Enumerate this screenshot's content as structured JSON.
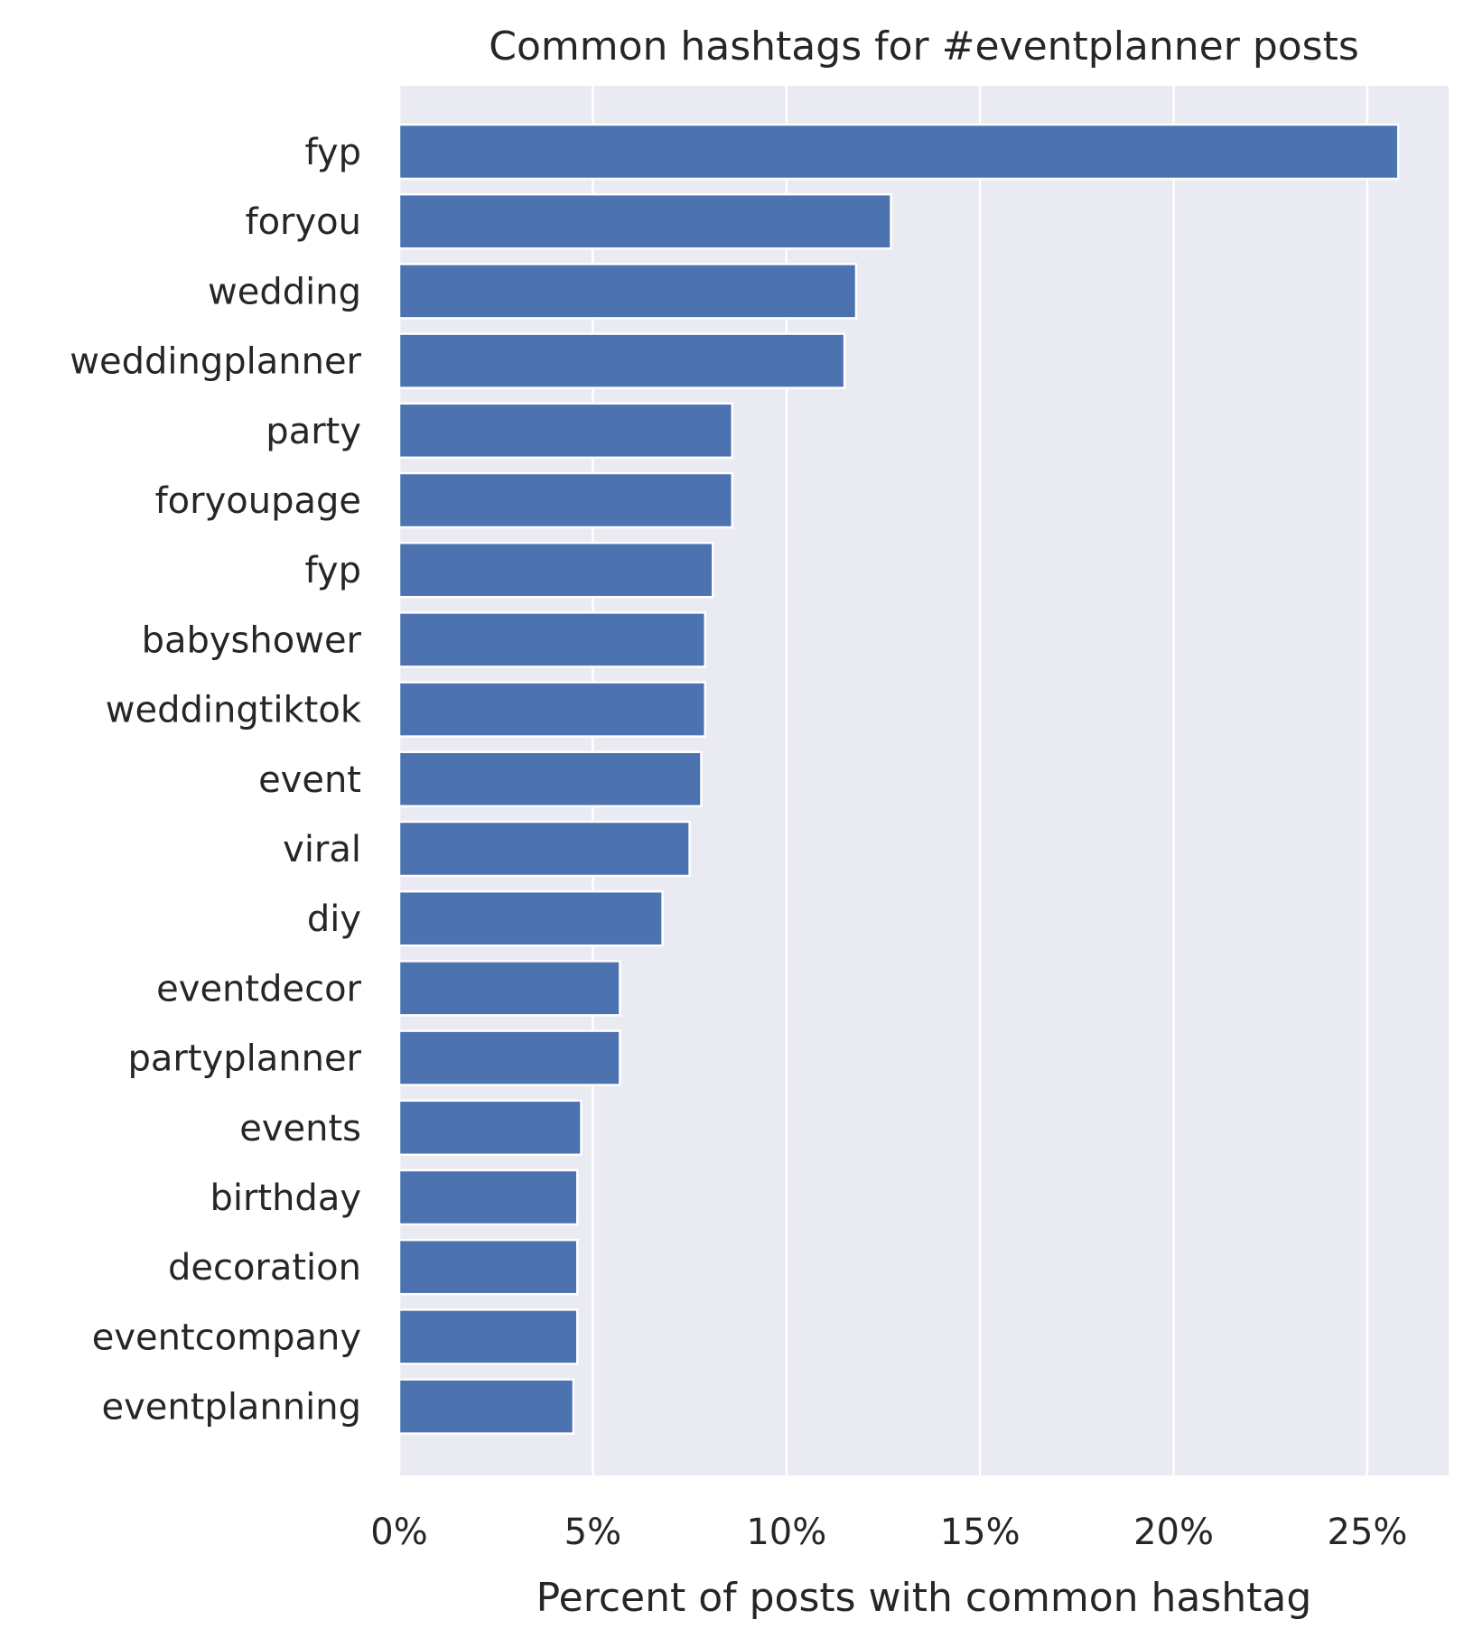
{
  "chart_data": {
    "type": "bar",
    "orientation": "horizontal",
    "title": "Common hashtags for #eventplanner posts",
    "xlabel": "Percent of posts with common hashtag",
    "ylabel": "",
    "categories": [
      "fyp",
      "foryou",
      "wedding",
      "weddingplanner",
      "party",
      "foryoupage",
      "fyp\u0001",
      "babyshower",
      "weddingtiktok",
      "event",
      "viral",
      "diy",
      "eventdecor",
      "partyplanner",
      "events",
      "birthday",
      "decoration",
      "eventcompany",
      "eventplanning"
    ],
    "values": [
      25.8,
      12.7,
      11.8,
      11.5,
      8.6,
      8.6,
      8.1,
      7.9,
      7.9,
      7.8,
      7.5,
      6.8,
      5.7,
      5.7,
      4.7,
      4.6,
      4.6,
      4.6,
      4.5
    ],
    "xlim": [
      0,
      27.1
    ],
    "xticks": [
      0,
      5,
      10,
      15,
      20,
      25
    ],
    "xtick_labels": [
      "0%",
      "5%",
      "10%",
      "15%",
      "20%",
      "25%"
    ],
    "grid": true,
    "colors": {
      "bar": "#4c72b0",
      "plot_background": "#eaeaf2",
      "grid": "#ffffff",
      "text": "#262626"
    }
  }
}
